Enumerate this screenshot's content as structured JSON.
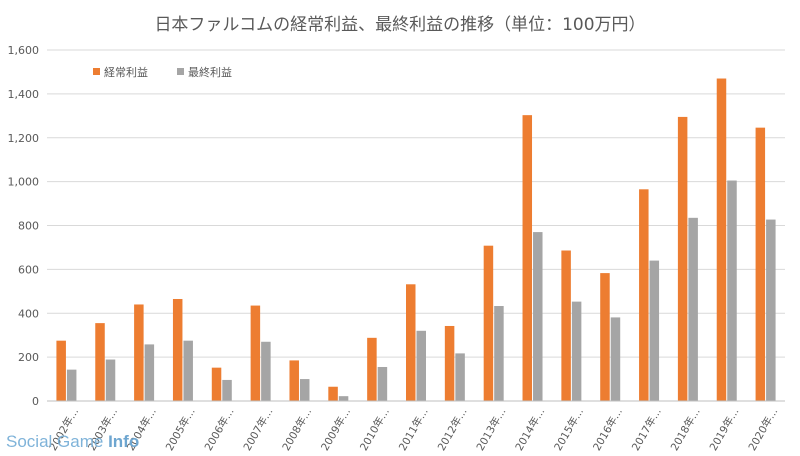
{
  "watermark": {
    "prefix": "Social Game",
    "suffix": "Info"
  },
  "chart_data": {
    "type": "bar",
    "title": "日本ファルコムの経常利益、最終利益の推移（単位：100万円）",
    "categories": [
      "2002年...",
      "2003年...",
      "2004年...",
      "2005年...",
      "2006年...",
      "2007年...",
      "2008年...",
      "2009年...",
      "2010年...",
      "2011年...",
      "2012年...",
      "2013年...",
      "2014年...",
      "2015年...",
      "2016年...",
      "2017年...",
      "2018年...",
      "2019年...",
      "2020年..."
    ],
    "series": [
      {
        "name": "経常利益",
        "color": "#ed7d31",
        "values": [
          275,
          355,
          440,
          465,
          152,
          435,
          185,
          65,
          288,
          532,
          342,
          708,
          1303,
          686,
          583,
          965,
          1295,
          1470,
          1246
        ]
      },
      {
        "name": "最終利益",
        "color": "#a5a5a5",
        "values": [
          143,
          189,
          258,
          275,
          96,
          270,
          100,
          22,
          155,
          320,
          217,
          433,
          770,
          453,
          381,
          640,
          835,
          1005,
          827
        ]
      }
    ],
    "yticks": [
      "0",
      "200",
      "400",
      "600",
      "800",
      "1,000",
      "1,200",
      "1,400",
      "1,600"
    ],
    "ylim": [
      0,
      1600
    ],
    "grid": true,
    "legend": "top-left",
    "xlabel": "",
    "ylabel": ""
  }
}
